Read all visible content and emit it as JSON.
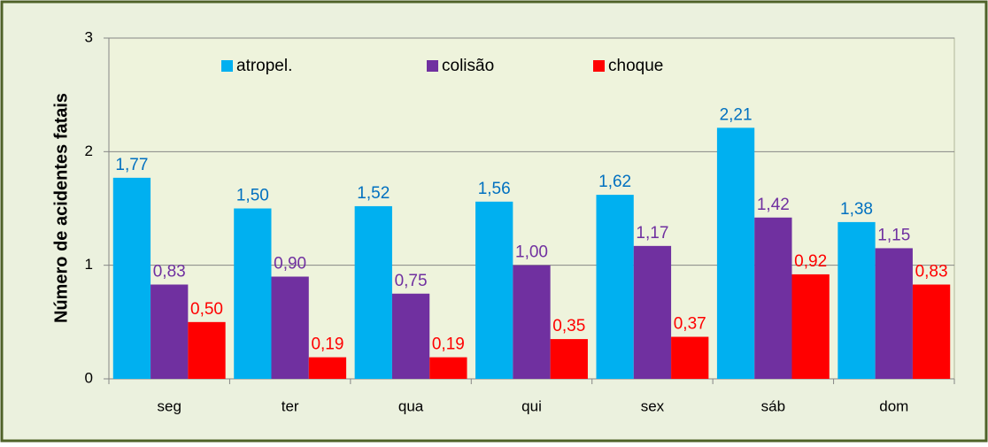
{
  "chart_data": {
    "type": "bar",
    "ylabel": "Número de acidentes fatais",
    "categories": [
      "seg",
      "ter",
      "qua",
      "qui",
      "sex",
      "sáb",
      "dom"
    ],
    "series": [
      {
        "name": "atropel.",
        "color": "#00b0f0",
        "label_color": "#0070c0",
        "values": [
          1.77,
          1.5,
          1.52,
          1.56,
          1.62,
          2.21,
          1.38
        ],
        "value_labels": [
          "1,77",
          "1,50",
          "1,52",
          "1,56",
          "1,62",
          "2,21",
          "1,38"
        ]
      },
      {
        "name": "colisão",
        "color": "#7030a0",
        "label_color": "#7030a0",
        "values": [
          0.83,
          0.9,
          0.75,
          1.0,
          1.17,
          1.42,
          1.15
        ],
        "value_labels": [
          "0,83",
          "0,90",
          "0,75",
          "1,00",
          "1,17",
          "1,42",
          "1,15"
        ]
      },
      {
        "name": "choque",
        "color": "#ff0000",
        "label_color": "#ff0000",
        "values": [
          0.5,
          0.19,
          0.19,
          0.35,
          0.37,
          0.92,
          0.83
        ],
        "value_labels": [
          "0,50",
          "0,19",
          "0,19",
          "0,35",
          "0,37",
          "0,92",
          "0,83"
        ]
      }
    ],
    "ylim": [
      0,
      3
    ],
    "yticks": [
      0,
      1,
      2,
      3
    ],
    "grid": true,
    "legend": "top"
  }
}
